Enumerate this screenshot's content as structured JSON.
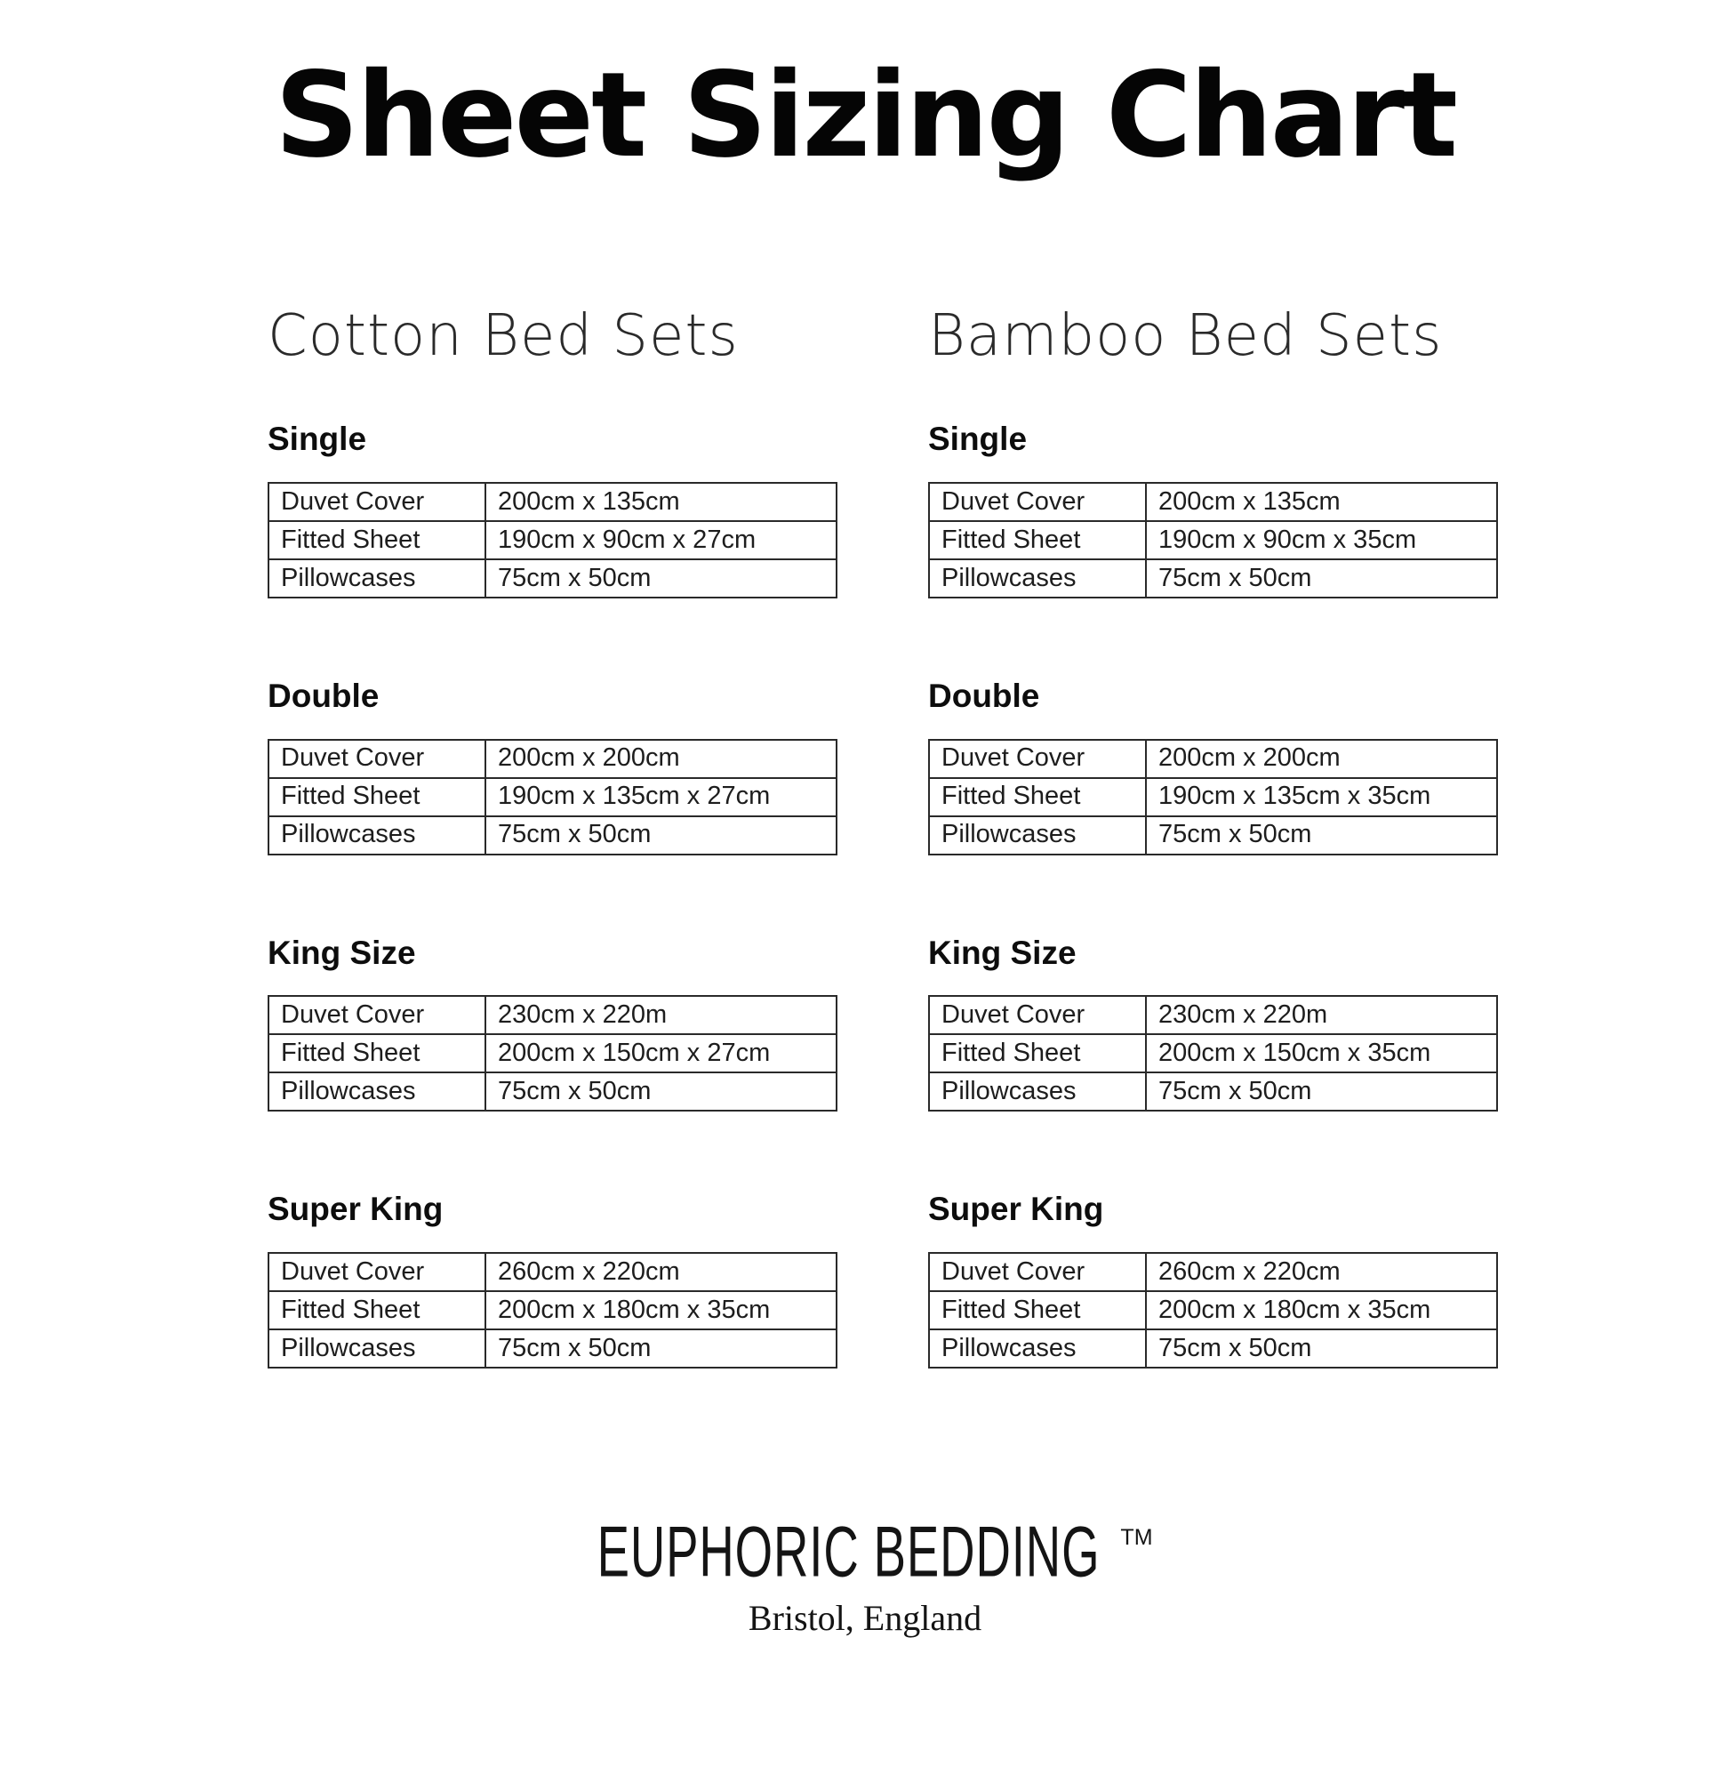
{
  "title": "Sheet Sizing Chart",
  "columns": [
    {
      "heading": "Cotton Bed Sets",
      "sections": [
        {
          "name": "Single",
          "rows": [
            [
              "Duvet Cover",
              "200cm x 135cm"
            ],
            [
              "Fitted Sheet",
              "190cm x 90cm x 27cm"
            ],
            [
              "Pillowcases",
              "75cm x 50cm"
            ]
          ]
        },
        {
          "name": "Double",
          "rows": [
            [
              "Duvet Cover",
              "200cm x 200cm"
            ],
            [
              "Fitted Sheet",
              "190cm x 135cm x 27cm"
            ],
            [
              "Pillowcases",
              "75cm x 50cm"
            ]
          ]
        },
        {
          "name": "King Size",
          "rows": [
            [
              "Duvet Cover",
              "230cm x 220m"
            ],
            [
              "Fitted Sheet",
              "200cm x 150cm x 27cm"
            ],
            [
              "Pillowcases",
              "75cm x 50cm"
            ]
          ]
        },
        {
          "name": "Super King",
          "rows": [
            [
              "Duvet Cover",
              "260cm x 220cm"
            ],
            [
              "Fitted Sheet",
              "200cm x 180cm x 35cm"
            ],
            [
              "Pillowcases",
              "75cm x 50cm"
            ]
          ]
        }
      ]
    },
    {
      "heading": "Bamboo Bed Sets",
      "sections": [
        {
          "name": "Single",
          "rows": [
            [
              "Duvet Cover",
              "200cm x 135cm"
            ],
            [
              "Fitted Sheet",
              "190cm x 90cm x 35cm"
            ],
            [
              "Pillowcases",
              "75cm x 50cm"
            ]
          ]
        },
        {
          "name": "Double",
          "rows": [
            [
              "Duvet Cover",
              "200cm x 200cm"
            ],
            [
              "Fitted Sheet",
              "190cm x 135cm x 35cm"
            ],
            [
              "Pillowcases",
              "75cm x 50cm"
            ]
          ]
        },
        {
          "name": "King Size",
          "rows": [
            [
              "Duvet Cover",
              "230cm x 220m"
            ],
            [
              "Fitted Sheet",
              "200cm x 150cm x 35cm"
            ],
            [
              "Pillowcases",
              "75cm x 50cm"
            ]
          ]
        },
        {
          "name": "Super King",
          "rows": [
            [
              "Duvet Cover",
              "260cm x 220cm"
            ],
            [
              "Fitted Sheet",
              "200cm x 180cm x 35cm"
            ],
            [
              "Pillowcases",
              "75cm x 50cm"
            ]
          ]
        }
      ]
    }
  ],
  "footer": {
    "brand": "EUPHORIC BEDDING",
    "trademark": "TM",
    "location": "Bristol, England"
  },
  "colors": {
    "background": "#ffffff",
    "text": "#1d1d1d",
    "border": "#2a2a2a"
  }
}
